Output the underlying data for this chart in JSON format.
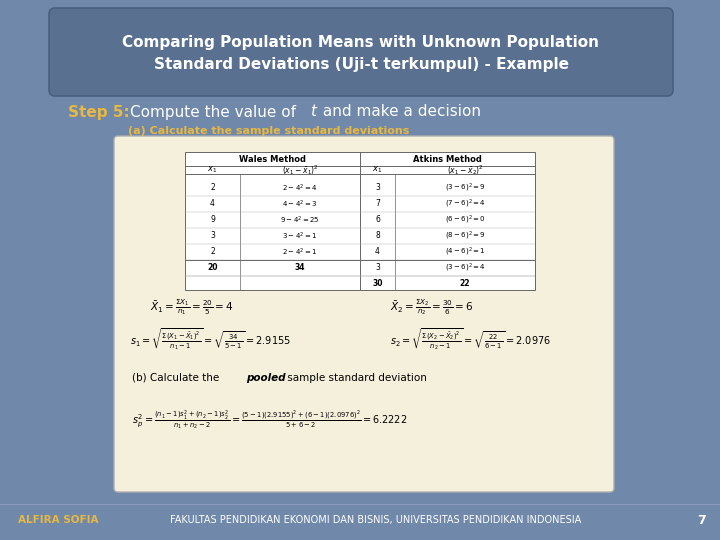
{
  "bg_color": "#7088aa",
  "title_line1": "Comparing Population Means with Unknown Population",
  "title_line2": "Standard Deviations (Uji-t terkumpul) - Example",
  "title_color": "#ffffff",
  "title_bg": "#5a7090",
  "step_label": "Step 5:",
  "step_color": "#e8b840",
  "step_text": "  Compute the value of ",
  "step_t": "t",
  "step_text2": " and make a decision",
  "step_text_color": "#ffffff",
  "sub_label_a": "(a) Calculate the sample standard deviations",
  "sub_label_color": "#e8b840",
  "footer_left": "ALFIRA SOFIA",
  "footer_center": "FAKULTAS PENDIDIKAN EKONOMI DAN BISNIS, UNIVERSITAS PENDIDIKAN INDONESIA",
  "footer_color_left": "#e8b840",
  "footer_color_center": "#ffffff",
  "page_num": "7",
  "content_bg": "#f5f0dc",
  "content_border": "#cccccc"
}
